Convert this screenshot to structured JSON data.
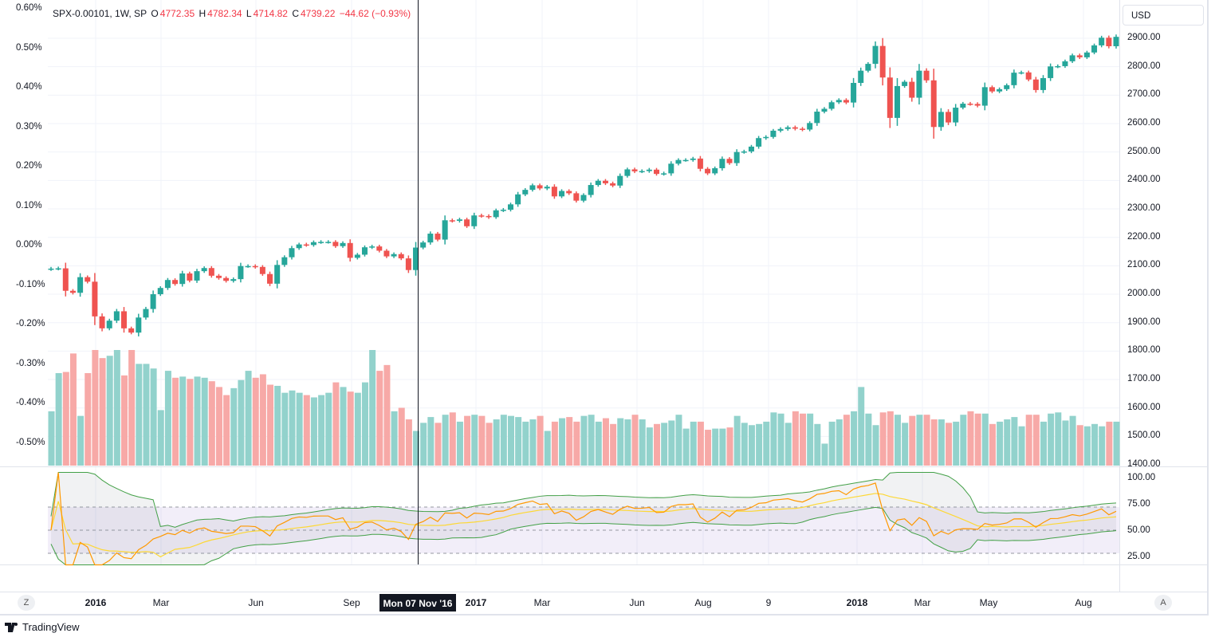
{
  "legend": {
    "symbol": "SPX-0.00101, 1W, SP",
    "o_label": "O",
    "open": "4772.35",
    "h_label": "H",
    "high": "4782.34",
    "l_label": "L",
    "low": "4714.82",
    "c_label": "C",
    "close": "4739.22",
    "change": "−44.62 (−0.93%)"
  },
  "currency": "USD",
  "left_axis": [
    "0.60%",
    "0.50%",
    "0.40%",
    "0.30%",
    "0.20%",
    "0.10%",
    "0.00%",
    "-0.10%",
    "-0.20%",
    "-0.30%",
    "-0.40%",
    "-0.50%"
  ],
  "price_axis": [
    "2900.00",
    "2800.00",
    "2700.00",
    "2600.00",
    "2500.00",
    "2400.00",
    "2300.00",
    "2200.00",
    "2100.00",
    "2000.00",
    "1900.00",
    "1800.00",
    "1700.00",
    "1600.00",
    "1500.00",
    "1400.00"
  ],
  "rsi_axis": [
    "100.00",
    "75.00",
    "50.00",
    "25.00"
  ],
  "time_axis": [
    "2016",
    "Mar",
    "Jun",
    "Sep",
    "2017",
    "Mar",
    "Jun",
    "Aug",
    "9",
    "2018",
    "Mar",
    "May",
    "Aug"
  ],
  "crosshair_label": "Mon 07 Nov '16",
  "buttons": {
    "zoom": "Z",
    "auto": "A"
  },
  "brand": "TradingView",
  "colors": {
    "up": "#26a69a",
    "down": "#ef5350",
    "vol_up": "#92d2cc",
    "vol_down": "#f7a9a7",
    "rsi": "#ff9800",
    "rsi_ma": "#fdd835",
    "bands": "#43a047",
    "rsi_zone": "#7e57c2"
  },
  "chart_data": {
    "type": "candlestick",
    "interval": "1W",
    "y_range": [
      1400,
      2950
    ],
    "closes": [
      2090,
      2091,
      2012,
      2005,
      2060,
      2044,
      1922,
      1880,
      1907,
      1940,
      1880,
      1865,
      1918,
      1948,
      2000,
      2022,
      2050,
      2036,
      2073,
      2048,
      2081,
      2092,
      2065,
      2057,
      2047,
      2053,
      2099,
      2099,
      2096,
      2071,
      2037,
      2103,
      2130,
      2162,
      2175,
      2173,
      2183,
      2184,
      2184,
      2169,
      2180,
      2128,
      2139,
      2165,
      2168,
      2153,
      2133,
      2141,
      2126,
      2085,
      2164,
      2182,
      2213,
      2192,
      2260,
      2258,
      2263,
      2239,
      2277,
      2275,
      2271,
      2295,
      2297,
      2316,
      2351,
      2367,
      2383,
      2372,
      2378,
      2344,
      2363,
      2355,
      2329,
      2349,
      2384,
      2399,
      2390,
      2382,
      2416,
      2439,
      2432,
      2433,
      2438,
      2423,
      2425,
      2459,
      2472,
      2472,
      2477,
      2441,
      2425,
      2443,
      2476,
      2461,
      2500,
      2502,
      2519,
      2549,
      2553,
      2575,
      2581,
      2587,
      2582,
      2579,
      2602,
      2642,
      2652,
      2675,
      2683,
      2674,
      2743,
      2786,
      2810,
      2873,
      2762,
      2620,
      2732,
      2747,
      2691,
      2786,
      2752,
      2588,
      2641,
      2604,
      2656,
      2670,
      2669,
      2663,
      2728,
      2713,
      2721,
      2735,
      2779,
      2780,
      2755,
      2718,
      2760,
      2801,
      2802,
      2819,
      2840,
      2833,
      2850,
      2875,
      2902,
      2872,
      2905
    ],
    "volume_relative": [
      47,
      80,
      81,
      97,
      43,
      80,
      100,
      93,
      95,
      100,
      78,
      100,
      88,
      88,
      84,
      48,
      82,
      76,
      77,
      75,
      77,
      76,
      73,
      68,
      61,
      67,
      74,
      82,
      76,
      79,
      70,
      69,
      63,
      65,
      63,
      61,
      59,
      61,
      63,
      72,
      68,
      64,
      63,
      72,
      100,
      82,
      87,
      47,
      50,
      40,
      30,
      37,
      42,
      37,
      44,
      46,
      38,
      43,
      44,
      43,
      37,
      40,
      44,
      43,
      42,
      38,
      40,
      43,
      30,
      38,
      41,
      42,
      38,
      43,
      44,
      38,
      41,
      36,
      41,
      40,
      44,
      40,
      33,
      36,
      37,
      39,
      44,
      32,
      38,
      38,
      31,
      32,
      32,
      33,
      43,
      37,
      35,
      36,
      38,
      46,
      45,
      37,
      47,
      45,
      45,
      36,
      19,
      38,
      40,
      44,
      47,
      68,
      45,
      35,
      46,
      47,
      44,
      37,
      43,
      44,
      44,
      40,
      40,
      37,
      38,
      44,
      47,
      45,
      45,
      36,
      38,
      40,
      42,
      34,
      44,
      44,
      38,
      45,
      46,
      39,
      43,
      35,
      34,
      36,
      34,
      38,
      38
    ],
    "rsi_levels": [
      70,
      50,
      30
    ],
    "grid": true
  }
}
